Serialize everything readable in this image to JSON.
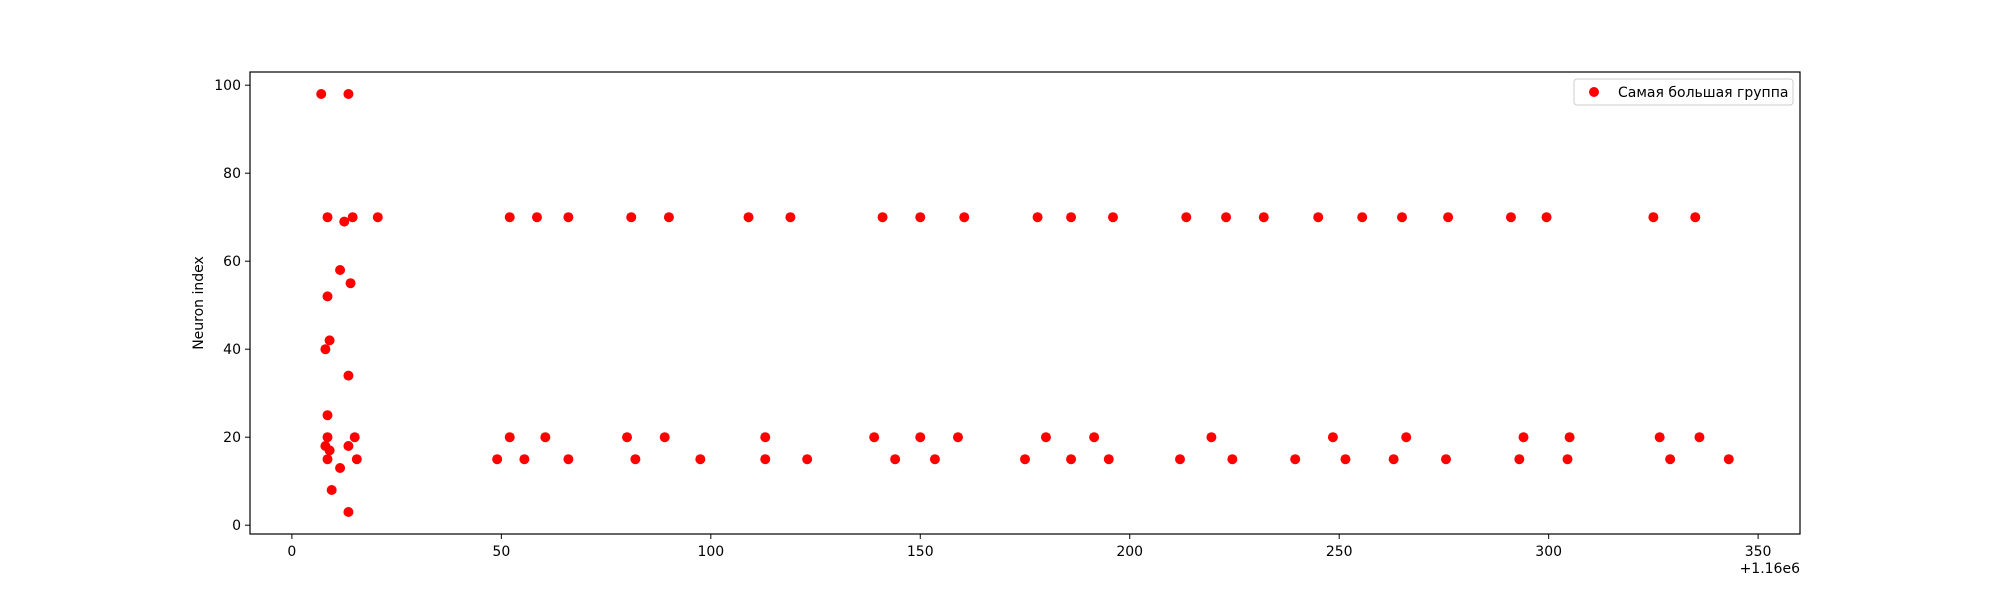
{
  "chart_data": {
    "type": "scatter",
    "ylabel": "Neuron index",
    "xlim": [
      -10,
      360
    ],
    "ylim": [
      -2,
      103
    ],
    "x_offset_label": "+1.16e6",
    "xticks": [
      0,
      50,
      100,
      150,
      200,
      250,
      300,
      350
    ],
    "yticks": [
      0,
      20,
      40,
      60,
      80,
      100
    ],
    "legend_position": "top-right",
    "grid": false,
    "series": [
      {
        "name": "Самая большая группа",
        "color": "#ff0000",
        "points": [
          [
            7,
            98
          ],
          [
            13.5,
            98
          ],
          [
            8.5,
            70
          ],
          [
            12.5,
            69
          ],
          [
            14.5,
            70
          ],
          [
            20.5,
            70
          ],
          [
            11.5,
            58
          ],
          [
            14,
            55
          ],
          [
            8.5,
            52
          ],
          [
            9,
            42
          ],
          [
            8,
            40
          ],
          [
            13.5,
            34
          ],
          [
            8.5,
            25
          ],
          [
            8.5,
            20
          ],
          [
            8,
            18
          ],
          [
            9,
            17
          ],
          [
            8.5,
            15
          ],
          [
            13.5,
            18
          ],
          [
            15,
            20
          ],
          [
            15.5,
            15
          ],
          [
            11.5,
            13
          ],
          [
            9.5,
            8
          ],
          [
            13.5,
            3
          ],
          [
            52,
            70
          ],
          [
            58.5,
            70
          ],
          [
            66,
            70
          ],
          [
            81,
            70
          ],
          [
            90,
            70
          ],
          [
            109,
            70
          ],
          [
            119,
            70
          ],
          [
            141,
            70
          ],
          [
            150,
            70
          ],
          [
            160.5,
            70
          ],
          [
            178,
            70
          ],
          [
            186,
            70
          ],
          [
            196,
            70
          ],
          [
            213.5,
            70
          ],
          [
            223,
            70
          ],
          [
            232,
            70
          ],
          [
            245,
            70
          ],
          [
            255.5,
            70
          ],
          [
            265,
            70
          ],
          [
            276,
            70
          ],
          [
            291,
            70
          ],
          [
            299.5,
            70
          ],
          [
            325,
            70
          ],
          [
            335,
            70
          ],
          [
            49,
            15
          ],
          [
            52,
            20
          ],
          [
            55.5,
            15
          ],
          [
            60.5,
            20
          ],
          [
            66,
            15
          ],
          [
            80,
            20
          ],
          [
            82,
            15
          ],
          [
            89,
            20
          ],
          [
            97.5,
            15
          ],
          [
            113,
            20
          ],
          [
            113,
            15
          ],
          [
            123,
            15
          ],
          [
            139,
            20
          ],
          [
            144,
            15
          ],
          [
            150,
            20
          ],
          [
            153.5,
            15
          ],
          [
            159,
            20
          ],
          [
            175,
            15
          ],
          [
            180,
            20
          ],
          [
            186,
            15
          ],
          [
            191.5,
            20
          ],
          [
            195,
            15
          ],
          [
            212,
            15
          ],
          [
            219.5,
            20
          ],
          [
            224.5,
            15
          ],
          [
            239.5,
            15
          ],
          [
            248.5,
            20
          ],
          [
            251.5,
            15
          ],
          [
            263,
            15
          ],
          [
            266,
            20
          ],
          [
            275.5,
            15
          ],
          [
            293,
            15
          ],
          [
            294,
            20
          ],
          [
            304.5,
            15
          ],
          [
            305,
            20
          ],
          [
            326.5,
            20
          ],
          [
            329,
            15
          ],
          [
            336,
            20
          ],
          [
            343,
            15
          ]
        ]
      }
    ]
  }
}
